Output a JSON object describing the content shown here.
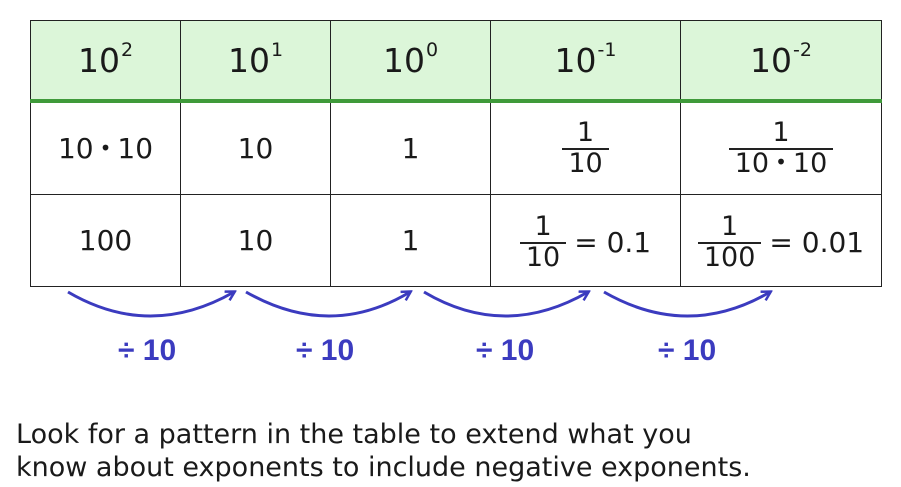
{
  "header": [
    {
      "base": "10",
      "exp": "2"
    },
    {
      "base": "10",
      "exp": "1"
    },
    {
      "base": "10",
      "exp": "0"
    },
    {
      "base": "10",
      "exp": "-1"
    },
    {
      "base": "10",
      "exp": "-2"
    }
  ],
  "row1": {
    "c1_a": "10",
    "c1_dot": "•",
    "c1_b": "10",
    "c2": "10",
    "c3": "1",
    "c4_num": "1",
    "c4_den": "10",
    "c5_num": "1",
    "c5_den_a": "10",
    "c5_den_dot": "•",
    "c5_den_b": "10"
  },
  "row2": {
    "c1": "100",
    "c2": "10",
    "c3": "1",
    "c4_num": "1",
    "c4_den": "10",
    "c4_eq": "= 0.1",
    "c5_num": "1",
    "c5_den": "100",
    "c5_eq": "= 0.01"
  },
  "divisions": [
    "÷ 10",
    "÷ 10",
    "÷ 10",
    "÷ 10"
  ],
  "caption": {
    "line1": "Look for a pattern in the table to extend what you",
    "line2": "know about exponents to include negative exponents."
  },
  "colors": {
    "header_bg": "#dcf6d9",
    "header_rule": "#3f9a3a",
    "arrow": "#3b3bbf"
  }
}
